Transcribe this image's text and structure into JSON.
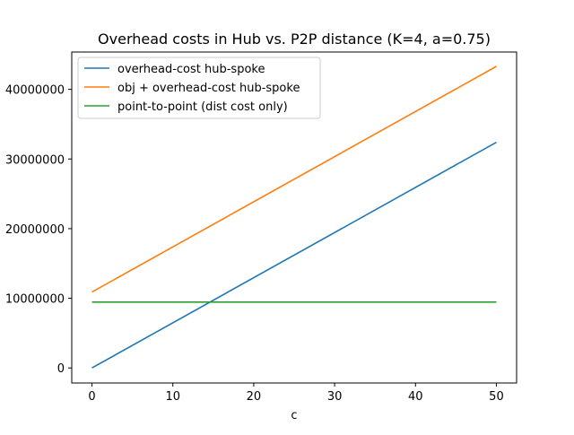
{
  "chart_data": {
    "type": "line",
    "title": "Overhead costs in Hub vs. P2P distance (K=4, a=0.75)",
    "xlabel": "c",
    "ylabel": "",
    "xlim": [
      -2.5,
      52.5
    ],
    "ylim": [
      -2160000,
      45360000
    ],
    "xticks": [
      0,
      10,
      20,
      30,
      40,
      50
    ],
    "xtick_labels": [
      "0",
      "10",
      "20",
      "30",
      "40",
      "50"
    ],
    "yticks": [
      0,
      10000000,
      20000000,
      30000000,
      40000000
    ],
    "ytick_labels": [
      "0",
      "10000000",
      "20000000",
      "30000000",
      "40000000"
    ],
    "grid": false,
    "legend_position": "top-left",
    "series": [
      {
        "name": "overhead-cost hub-spoke",
        "color": "#1f77b4",
        "x": [
          0,
          50
        ],
        "y": [
          0,
          32400000
        ]
      },
      {
        "name": "obj + overhead-cost hub-spoke",
        "color": "#ff7f0e",
        "x": [
          0,
          50
        ],
        "y": [
          10900000,
          43300000
        ]
      },
      {
        "name": "point-to-point (dist cost only)",
        "color": "#2ca02c",
        "x": [
          0,
          50
        ],
        "y": [
          9450000,
          9450000
        ]
      }
    ]
  }
}
